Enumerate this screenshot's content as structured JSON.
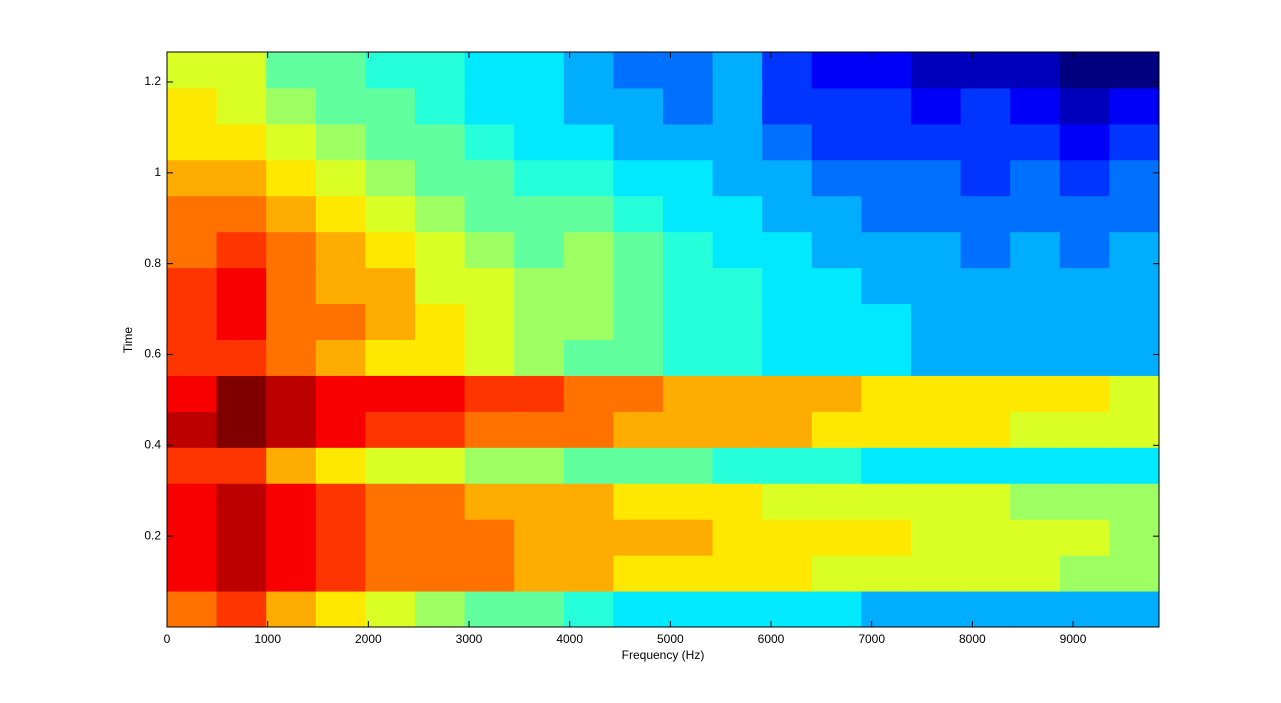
{
  "chart_data": {
    "type": "heatmap",
    "xlabel": "Frequency (Hz)",
    "ylabel": "Time",
    "xlim": [
      0,
      9854
    ],
    "ylim": [
      0,
      1.266
    ],
    "xticks": [
      0,
      1000,
      2000,
      3000,
      4000,
      5000,
      6000,
      7000,
      8000,
      9000
    ],
    "yticks": [
      0.2,
      0.4,
      0.6,
      0.8,
      1,
      1.2
    ],
    "colormap": "jet",
    "z": [
      [
        7.5,
        8,
        7,
        6.5,
        6,
        5.5,
        5,
        5,
        4.5,
        4,
        4,
        4,
        4,
        4,
        3.5,
        3.5,
        3.5,
        3.5,
        3.5,
        3.5
      ],
      [
        8.5,
        9,
        8.5,
        8,
        7.5,
        7.5,
        7.5,
        7,
        7,
        6.5,
        6.5,
        6.5,
        6.5,
        6,
        6,
        6,
        6,
        6,
        5.5,
        5.5
      ],
      [
        8.5,
        9,
        8.5,
        8,
        7.5,
        7.5,
        7.5,
        7,
        7,
        7,
        7,
        6.5,
        6.5,
        6.5,
        6.5,
        6,
        6,
        6,
        6,
        5.5
      ],
      [
        8.5,
        9,
        8.5,
        8,
        7.5,
        7.5,
        7,
        7,
        7,
        6.5,
        6.5,
        6.5,
        6,
        6,
        6,
        6,
        6,
        5.5,
        5.5,
        5.5
      ],
      [
        8,
        8,
        7,
        6.5,
        6,
        6,
        5.5,
        5.5,
        5,
        5,
        5,
        4.5,
        4.5,
        4.5,
        4,
        4,
        4,
        4,
        4,
        4
      ],
      [
        9,
        9.5,
        9,
        8.5,
        8,
        8,
        7.5,
        7.5,
        7.5,
        7,
        7,
        7,
        7,
        6.5,
        6.5,
        6.5,
        6.5,
        6,
        6,
        6
      ],
      [
        8.5,
        9.5,
        9,
        8.5,
        8.5,
        8.5,
        8,
        8,
        7.5,
        7.5,
        7,
        7,
        7,
        7,
        6.5,
        6.5,
        6.5,
        6.5,
        6.5,
        6
      ],
      [
        8,
        8,
        7.5,
        7,
        6.5,
        6.5,
        6,
        5.5,
        5,
        5,
        4.5,
        4.5,
        4,
        4,
        4,
        3.5,
        3.5,
        3.5,
        3.5,
        3.5
      ],
      [
        8,
        8.5,
        7.5,
        7.5,
        7,
        6.5,
        6,
        5.5,
        5.5,
        5,
        4.5,
        4.5,
        4,
        4,
        4,
        3.5,
        3.5,
        3.5,
        3.5,
        3.5
      ],
      [
        8,
        8.5,
        7.5,
        7,
        7,
        6,
        6,
        5.5,
        5.5,
        5,
        4.5,
        4.5,
        4,
        4,
        3.5,
        3.5,
        3.5,
        3.5,
        3.5,
        3.5
      ],
      [
        7.5,
        8,
        7.5,
        7,
        6.5,
        6,
        5.5,
        5,
        5.5,
        5,
        4.5,
        4,
        4,
        3.5,
        3.5,
        3.5,
        3,
        3.5,
        3,
        3.5
      ],
      [
        7.5,
        7.5,
        7,
        6.5,
        6,
        5.5,
        5,
        5,
        5,
        4.5,
        4,
        4,
        3.5,
        3.5,
        3,
        3,
        3,
        3,
        3,
        3
      ],
      [
        7,
        7,
        6.5,
        6,
        5.5,
        5,
        5,
        4.5,
        4.5,
        4,
        4,
        3.5,
        3.5,
        3,
        3,
        3,
        2.5,
        3,
        2.5,
        3
      ],
      [
        6.5,
        6.5,
        6,
        5.5,
        5,
        5,
        4.5,
        4,
        4,
        3.5,
        3.5,
        3.5,
        3,
        2.5,
        2.5,
        2.5,
        2.5,
        2.5,
        2,
        2.5
      ],
      [
        6.5,
        6,
        5.5,
        5,
        5,
        4.5,
        4,
        4,
        3.5,
        3.5,
        3,
        3.5,
        2.5,
        2.5,
        2.5,
        2,
        2.5,
        2,
        1.5,
        2
      ],
      [
        6,
        6,
        5,
        5,
        4.5,
        4.5,
        4,
        4,
        3.5,
        3,
        3,
        3.5,
        2.5,
        2,
        2,
        1.5,
        1.5,
        1.5,
        1,
        1
      ]
    ]
  }
}
